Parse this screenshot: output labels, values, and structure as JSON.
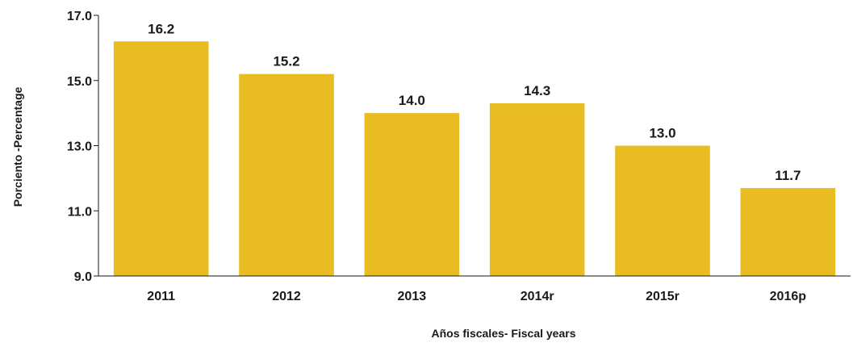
{
  "chart_data": {
    "type": "bar",
    "categories": [
      "2011",
      "2012",
      "2013",
      "2014r",
      "2015r",
      "2016p"
    ],
    "values": [
      16.2,
      15.2,
      14.0,
      14.3,
      13.0,
      11.7
    ],
    "value_labels": [
      "16.2",
      "15.2",
      "14.0",
      "14.3",
      "13.0",
      "11.7"
    ],
    "title": "",
    "xlabel": "Años fiscales- Fiscal years",
    "ylabel": "Porciento -Percentage",
    "ylim": [
      9.0,
      17.0
    ],
    "yticks": [
      "9.0",
      "11.0",
      "13.0",
      "15.0",
      "17.0"
    ],
    "grid": false,
    "bar_color": "#E8BC22"
  }
}
